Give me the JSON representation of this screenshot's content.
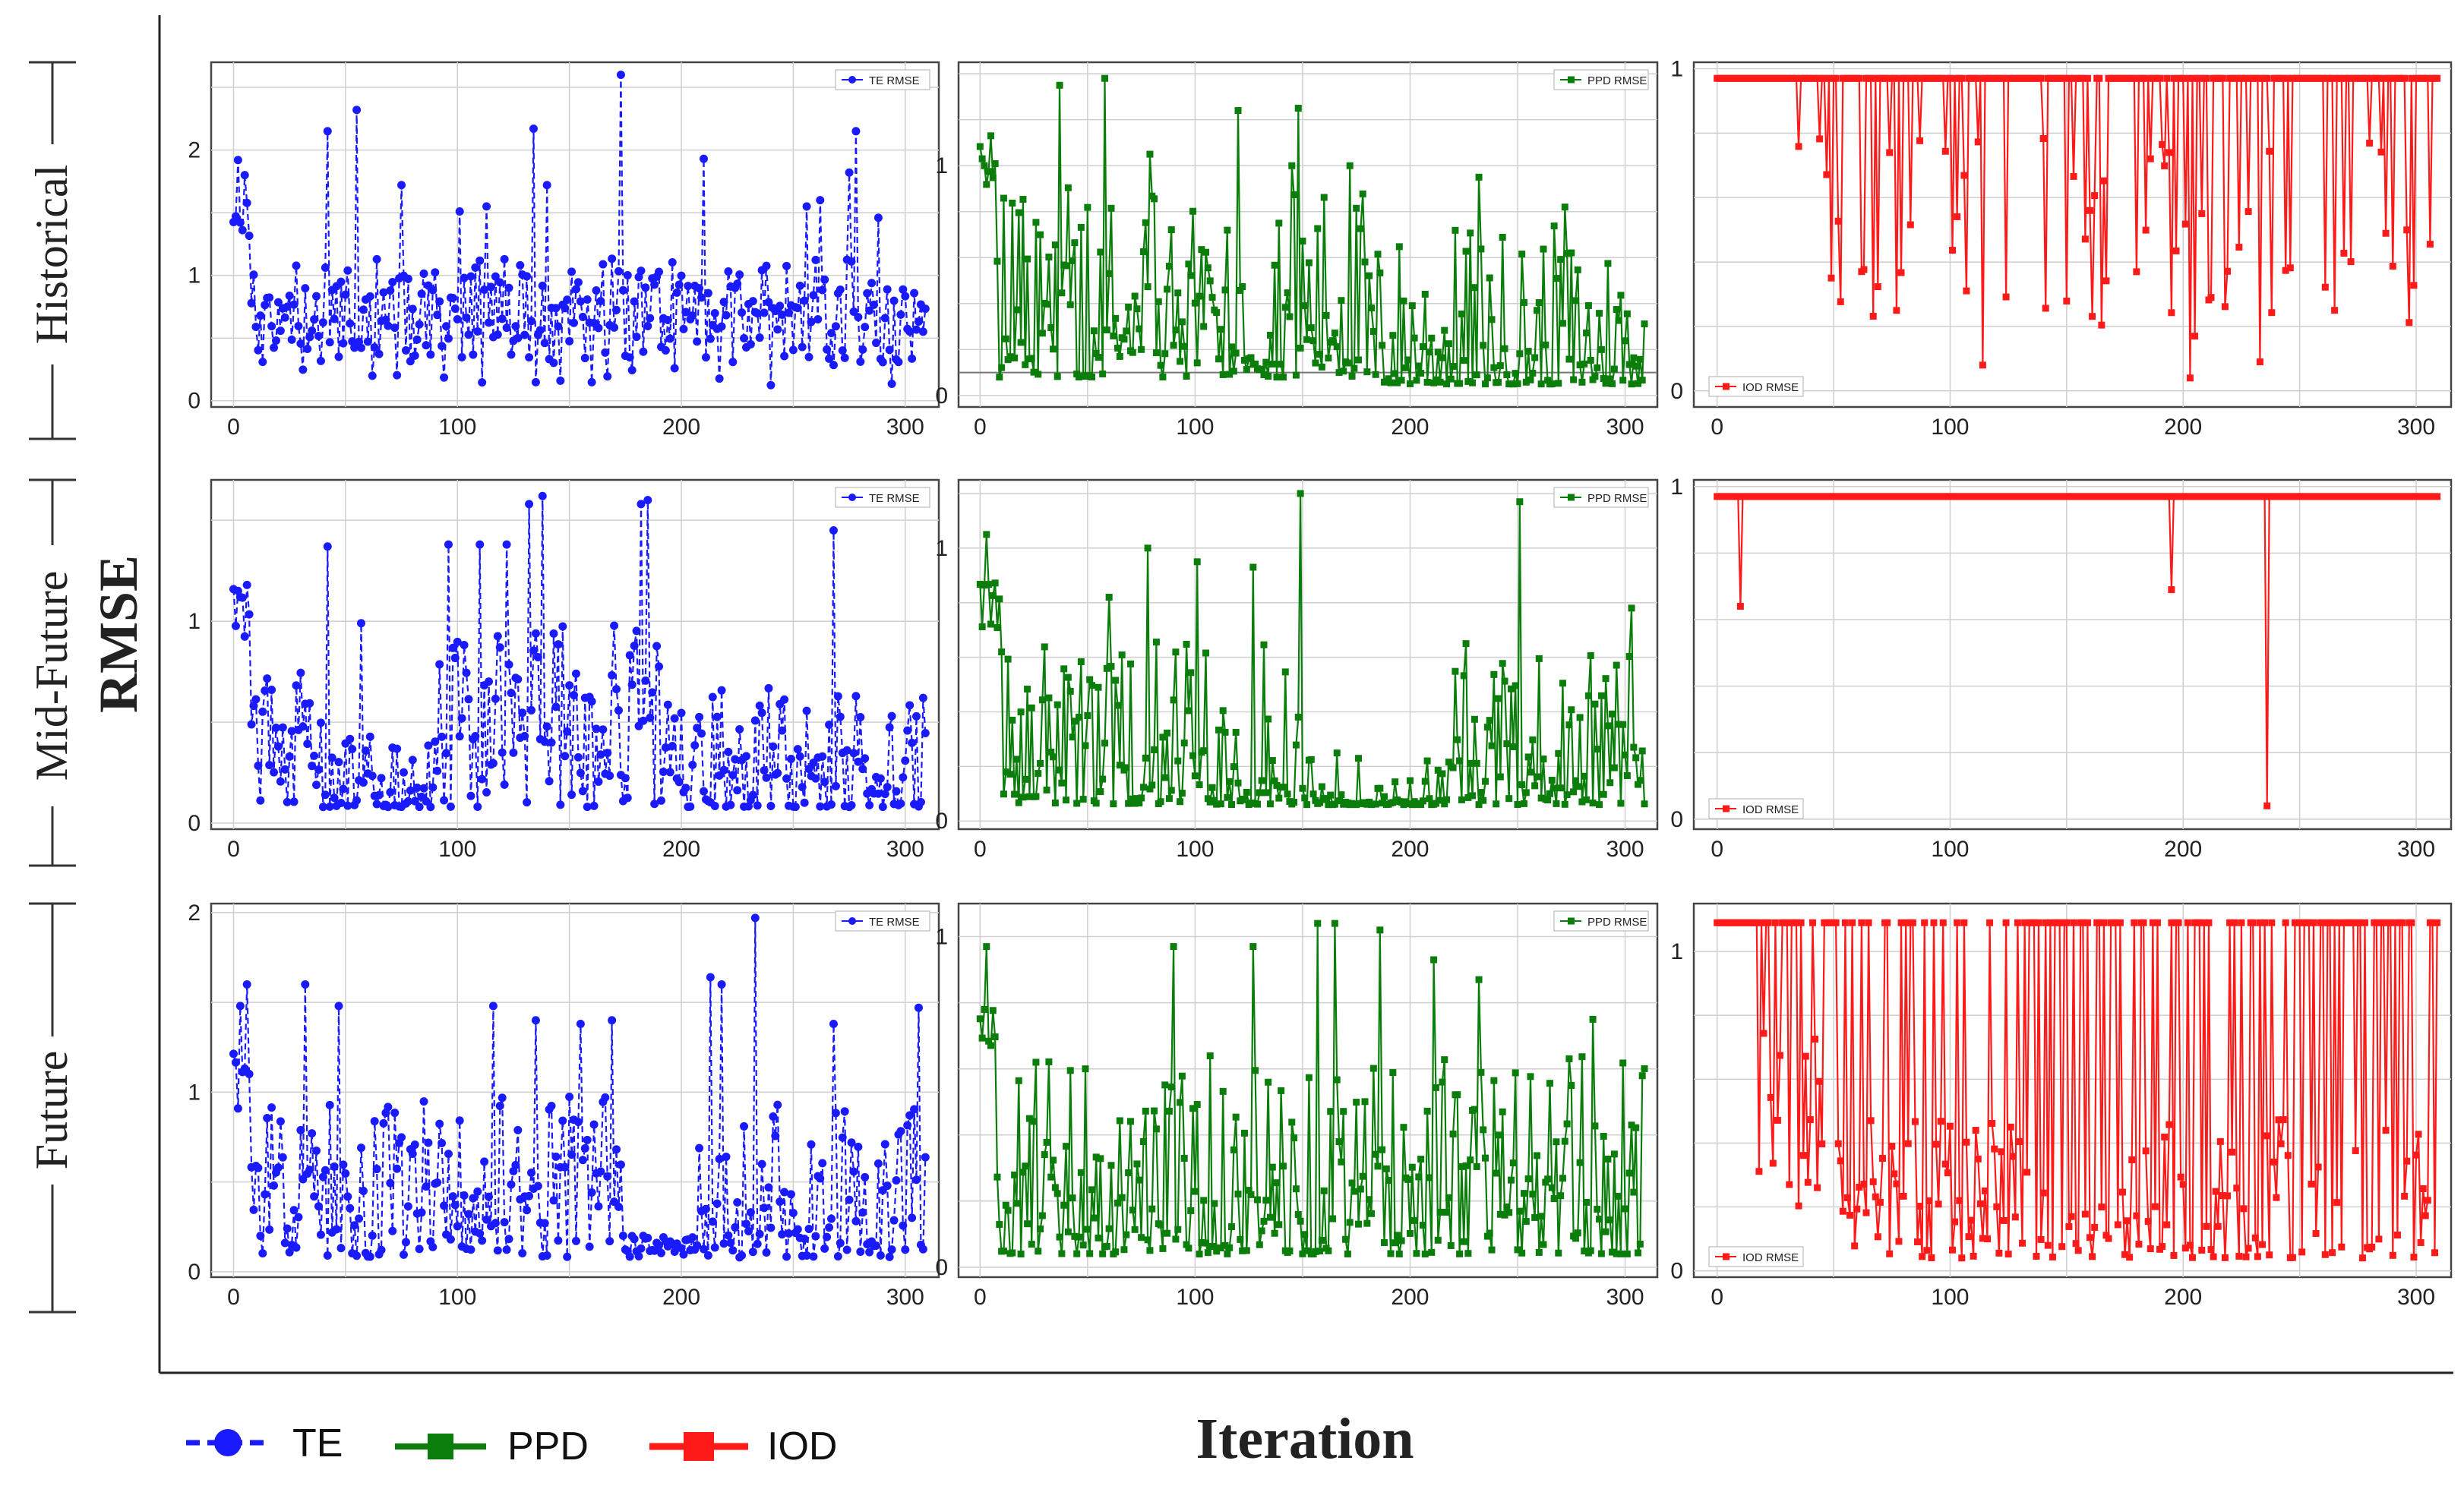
{
  "figure": {
    "y_axis_title": "RMSE",
    "x_axis_title": "Iteration",
    "row_labels": [
      "Historical",
      "Mid-Future",
      "Future"
    ],
    "legend": [
      {
        "label": "TE",
        "color": "#1a1aff",
        "marker": "circle",
        "dash": true
      },
      {
        "label": "PPD",
        "color": "#0a7d0a",
        "marker": "square",
        "dash": false
      },
      {
        "label": "IOD",
        "color": "#ff1a1a",
        "marker": "square",
        "dash": false
      }
    ]
  },
  "chart_data": [
    {
      "id": "hist-te",
      "type": "line",
      "title": "",
      "series": [
        {
          "name": "TE RMSE",
          "color": "#1a1aff",
          "marker": "circle",
          "dash": true,
          "seed": 11,
          "gen": "noisy",
          "base": 0.72,
          "spread": 0.42,
          "lowProb": 0.12,
          "spikes": [
            [
              2,
              1.92
            ],
            [
              5,
              1.8
            ],
            [
              42,
              2.15
            ],
            [
              55,
              2.32
            ],
            [
              75,
              1.72
            ],
            [
              101,
              1.51
            ],
            [
              113,
              1.55
            ],
            [
              134,
              2.17
            ],
            [
              140,
              1.72
            ],
            [
              173,
              2.6
            ],
            [
              210,
              1.93
            ],
            [
              256,
              1.55
            ],
            [
              262,
              1.6
            ],
            [
              275,
              1.82
            ],
            [
              278,
              2.15
            ],
            [
              288,
              1.46
            ]
          ]
        }
      ],
      "x_range": [
        -10,
        315
      ],
      "y_range": [
        -0.05,
        2.7
      ],
      "x_ticks": [
        0,
        100,
        200,
        300
      ],
      "y_ticks": [
        0,
        1,
        2
      ]
    },
    {
      "id": "hist-ppd",
      "type": "line",
      "title": "",
      "series": [
        {
          "name": "PPD RMSE",
          "color": "#0a7d0a",
          "marker": "square",
          "dash": false,
          "seed": 22,
          "gen": "ppd-hist",
          "spikes": [
            [
              2,
              1.0
            ],
            [
              5,
              1.13
            ],
            [
              37,
              1.35
            ],
            [
              58,
              1.38
            ],
            [
              79,
              1.05
            ],
            [
              120,
              1.24
            ],
            [
              145,
              1.0
            ],
            [
              148,
              1.25
            ],
            [
              172,
              1.0
            ],
            [
              232,
              0.95
            ],
            [
              272,
              0.82
            ]
          ]
        }
      ],
      "x_range": [
        -10,
        315
      ],
      "y_range": [
        -0.05,
        1.45
      ],
      "x_ticks": [
        0,
        100,
        200,
        300
      ],
      "y_ticks": [
        0,
        1
      ],
      "hline": 0.1
    },
    {
      "id": "hist-iod",
      "type": "line",
      "title": "",
      "series": [
        {
          "name": "IOD RMSE",
          "color": "#ff1a1a",
          "marker": "square",
          "dash": false,
          "seed": 33,
          "gen": "iod",
          "top": 0.97,
          "prob": 0.3,
          "startIdx": 30,
          "dips": [
            [
              114,
              0.08
            ],
            [
              203,
              0.04
            ],
            [
              205,
              0.17
            ],
            [
              233,
              0.09
            ],
            [
              265,
              0.25
            ],
            [
              208,
              0.55
            ]
          ]
        }
      ],
      "x_range": [
        -10,
        315
      ],
      "y_range": [
        -0.05,
        1.02
      ],
      "x_ticks": [
        0,
        100,
        200,
        300
      ],
      "y_ticks": [
        0,
        1
      ]
    },
    {
      "id": "mid-te",
      "type": "line",
      "title": "",
      "series": [
        {
          "name": "TE RMSE",
          "color": "#1a1aff",
          "marker": "circle",
          "dash": true,
          "seed": 44,
          "gen": "mid-te",
          "spikes": [
            [
              2,
              1.15
            ],
            [
              42,
              1.37
            ],
            [
              57,
              0.99
            ],
            [
              96,
              1.38
            ],
            [
              110,
              1.38
            ],
            [
              122,
              1.38
            ],
            [
              132,
              1.58
            ],
            [
              138,
              1.62
            ],
            [
              182,
              1.58
            ],
            [
              185,
              1.6
            ],
            [
              268,
              1.45
            ],
            [
              308,
              0.62
            ]
          ]
        }
      ],
      "x_range": [
        -10,
        315
      ],
      "y_range": [
        -0.03,
        1.7
      ],
      "x_ticks": [
        0,
        100,
        200,
        300
      ],
      "y_ticks": [
        0,
        1
      ]
    },
    {
      "id": "mid-ppd",
      "type": "line",
      "title": "",
      "series": [
        {
          "name": "PPD RMSE",
          "color": "#0a7d0a",
          "marker": "square",
          "dash": false,
          "seed": 55,
          "gen": "mid-ppd",
          "spikes": [
            [
              3,
              1.05
            ],
            [
              60,
              0.82
            ],
            [
              78,
              1.0
            ],
            [
              101,
              0.95
            ],
            [
              127,
              0.93
            ],
            [
              149,
              1.2
            ],
            [
              226,
              0.65
            ],
            [
              251,
              1.17
            ],
            [
              303,
              0.78
            ]
          ]
        }
      ],
      "x_range": [
        -10,
        315
      ],
      "y_range": [
        -0.03,
        1.25
      ],
      "x_ticks": [
        0,
        100,
        200,
        300
      ],
      "y_ticks": [
        0,
        1
      ]
    },
    {
      "id": "mid-iod",
      "type": "line",
      "title": "",
      "series": [
        {
          "name": "IOD RMSE",
          "color": "#ff1a1a",
          "marker": "square",
          "dash": false,
          "seed": 66,
          "gen": "iod-flat",
          "top": 0.97,
          "dips": [
            [
              10,
              0.64
            ],
            [
              195,
              0.69
            ],
            [
              236,
              0.04
            ]
          ]
        }
      ],
      "x_range": [
        -10,
        315
      ],
      "y_range": [
        -0.03,
        1.02
      ],
      "x_ticks": [
        0,
        100,
        200,
        300
      ],
      "y_ticks": [
        0,
        1
      ]
    },
    {
      "id": "fut-te",
      "type": "line",
      "title": "",
      "series": [
        {
          "name": "TE RMSE",
          "color": "#1a1aff",
          "marker": "circle",
          "dash": true,
          "seed": 77,
          "gen": "fut-te",
          "spikes": [
            [
              3,
              1.48
            ],
            [
              6,
              1.6
            ],
            [
              32,
              1.6
            ],
            [
              47,
              1.48
            ],
            [
              116,
              1.48
            ],
            [
              135,
              1.4
            ],
            [
              155,
              1.38
            ],
            [
              169,
              1.4
            ],
            [
              213,
              1.64
            ],
            [
              218,
              1.6
            ],
            [
              233,
              1.97
            ],
            [
              268,
              1.38
            ],
            [
              306,
              1.47
            ]
          ]
        }
      ],
      "x_range": [
        -10,
        315
      ],
      "y_range": [
        -0.03,
        2.05
      ],
      "x_ticks": [
        0,
        100,
        200,
        300
      ],
      "y_ticks": [
        0,
        1,
        2
      ]
    },
    {
      "id": "fut-ppd",
      "type": "line",
      "title": "",
      "series": [
        {
          "name": "PPD RMSE",
          "color": "#0a7d0a",
          "marker": "square",
          "dash": false,
          "seed": 88,
          "gen": "fut-ppd",
          "spikes": [
            [
              3,
              0.97
            ],
            [
              90,
              0.97
            ],
            [
              127,
              0.97
            ],
            [
              157,
              1.04
            ],
            [
              165,
              1.04
            ],
            [
              186,
              1.02
            ],
            [
              211,
              0.93
            ],
            [
              232,
              0.87
            ],
            [
              285,
              0.75
            ]
          ]
        }
      ],
      "x_range": [
        -10,
        315
      ],
      "y_range": [
        -0.03,
        1.1
      ],
      "x_ticks": [
        0,
        100,
        200,
        300
      ],
      "y_ticks": [
        0,
        1
      ]
    },
    {
      "id": "fut-iod",
      "type": "line",
      "title": "",
      "series": [
        {
          "name": "IOD RMSE",
          "color": "#ff1a1a",
          "marker": "square",
          "dash": false,
          "seed": 99,
          "gen": "iod-fut",
          "top": 1.09
        }
      ],
      "x_range": [
        -10,
        315
      ],
      "y_range": [
        -0.02,
        1.15
      ],
      "x_ticks": [
        0,
        100,
        200,
        300
      ],
      "y_ticks": [
        0,
        1
      ]
    }
  ]
}
